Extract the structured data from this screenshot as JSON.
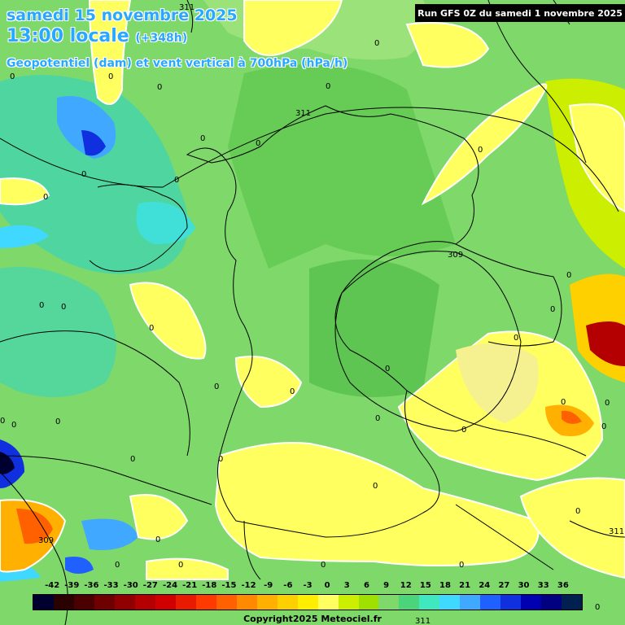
{
  "header": {
    "date": "samedi 15 novembre 2025",
    "time": "13:00 locale",
    "lead": "(+348h)",
    "field": "Geopotentiel (dam) et vent vertical à 700hPa (hPa/h)",
    "run": "Run GFS 0Z du samedi 1 novembre 2025"
  },
  "scale": {
    "labels": [
      "-42",
      "-39",
      "-36",
      "-33",
      "-30",
      "-27",
      "-24",
      "-21",
      "-18",
      "-15",
      "-12",
      "-9",
      "-6",
      "-3",
      "0",
      "3",
      "6",
      "9",
      "12",
      "15",
      "18",
      "21",
      "24",
      "27",
      "30",
      "33",
      "36"
    ],
    "colors": [
      "#000030",
      "#2a0000",
      "#4a0000",
      "#6e0000",
      "#900000",
      "#b40000",
      "#d00000",
      "#e81a00",
      "#ff3a00",
      "#ff6000",
      "#ff8a00",
      "#ffb000",
      "#ffd000",
      "#ffee00",
      "#ffff60",
      "#ccee00",
      "#a0e000",
      "#7fd86a",
      "#4cd47a",
      "#40e8c0",
      "#40d8ff",
      "#40a8ff",
      "#2060ff",
      "#1030e0",
      "#0000b0",
      "#000080",
      "#002050"
    ]
  },
  "contours": [
    {
      "label": "311"
    },
    {
      "label": "309"
    },
    {
      "label": "311"
    },
    {
      "label": "309"
    },
    {
      "label": "311"
    }
  ],
  "zero_label": "0",
  "copyright": "Copyright2025 Meteociel.fr"
}
